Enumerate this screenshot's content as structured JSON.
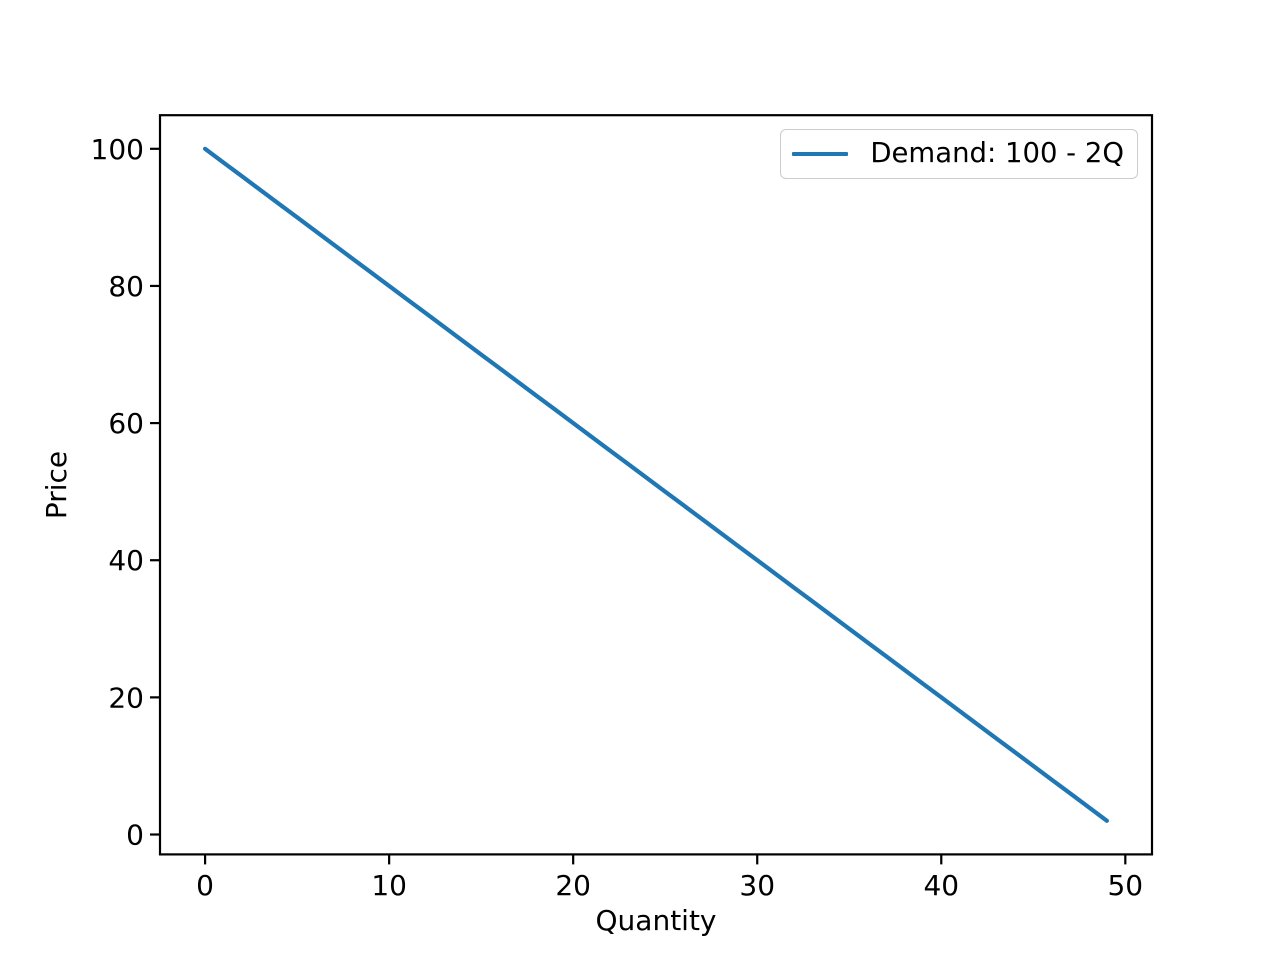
{
  "colors": {
    "line": "#1f77b4",
    "axes": "#000000",
    "background": "#ffffff",
    "legend_border": "#cccccc"
  },
  "legend": {
    "position": "upper right",
    "entries": [
      {
        "label": "Demand: 100 - 2Q",
        "color": "#1f77b4"
      }
    ]
  },
  "chart_data": {
    "type": "line",
    "title": "",
    "xlabel": "Quantity",
    "ylabel": "Price",
    "xlim": [
      -2.45,
      51.45
    ],
    "ylim": [
      -2.9,
      104.9
    ],
    "xticks": [
      0,
      10,
      20,
      30,
      40,
      50
    ],
    "yticks": [
      0,
      20,
      40,
      60,
      80,
      100
    ],
    "grid": false,
    "legend_position": "upper right",
    "x": [
      0,
      1,
      2,
      3,
      4,
      5,
      6,
      7,
      8,
      9,
      10,
      11,
      12,
      13,
      14,
      15,
      16,
      17,
      18,
      19,
      20,
      21,
      22,
      23,
      24,
      25,
      26,
      27,
      28,
      29,
      30,
      31,
      32,
      33,
      34,
      35,
      36,
      37,
      38,
      39,
      40,
      41,
      42,
      43,
      44,
      45,
      46,
      47,
      48,
      49
    ],
    "series": [
      {
        "name": "Demand: 100 - 2Q",
        "color": "#1f77b4",
        "values": [
          100,
          98,
          96,
          94,
          92,
          90,
          88,
          86,
          84,
          82,
          80,
          78,
          76,
          74,
          72,
          70,
          68,
          66,
          64,
          62,
          60,
          58,
          56,
          54,
          52,
          50,
          48,
          46,
          44,
          42,
          40,
          38,
          36,
          34,
          32,
          30,
          28,
          26,
          24,
          22,
          20,
          18,
          16,
          14,
          12,
          10,
          8,
          6,
          4,
          2
        ]
      }
    ]
  }
}
